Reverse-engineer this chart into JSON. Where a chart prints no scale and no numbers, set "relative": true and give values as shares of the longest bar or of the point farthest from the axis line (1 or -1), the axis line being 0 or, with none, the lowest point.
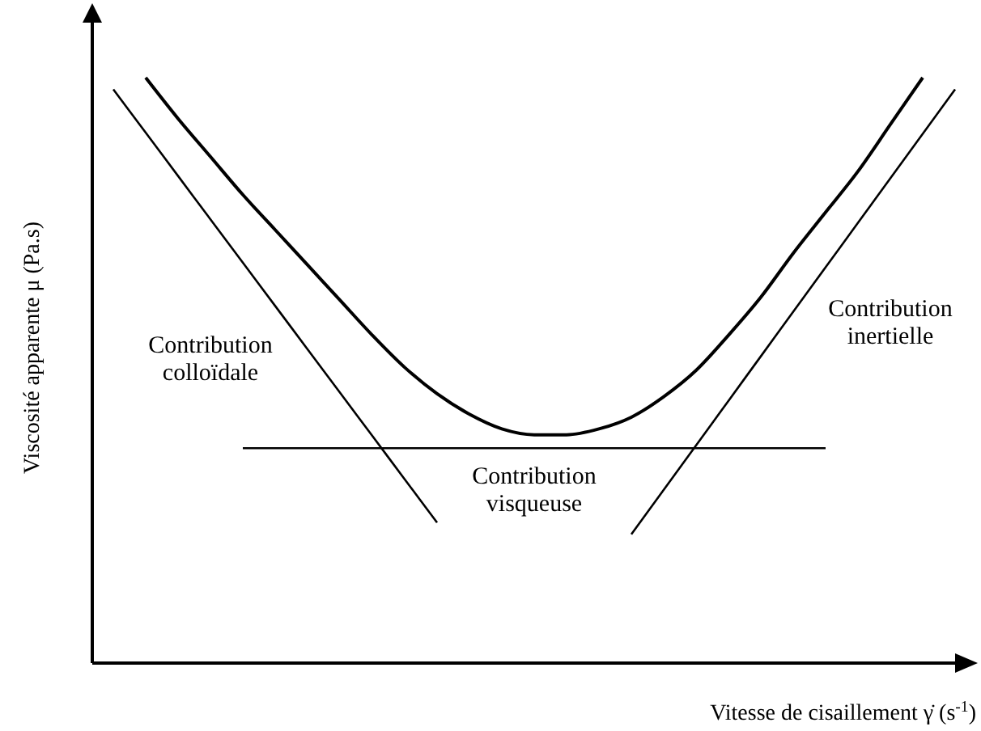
{
  "chart_data": {
    "type": "line",
    "relative": true,
    "marker": "none",
    "line_style": "solid",
    "xlabel": "Vitesse de cisaillement γ̇ (s$^{-1}$)",
    "ylabel": "Viscosité apparente μ (Pa.s)",
    "categories": [
      null,
      null,
      null,
      null,
      null,
      null,
      null,
      null,
      null,
      null,
      null,
      null,
      null,
      null,
      null,
      null,
      null,
      null,
      null,
      null,
      null,
      null,
      null,
      null,
      null,
      null,
      null
    ],
    "series": [
      {
        "color": "#000000",
        "values": [
          null,
          1.0,
          0.93,
          0.865,
          0.8,
          0.74,
          0.68,
          0.62,
          0.56,
          0.505,
          0.46,
          0.425,
          0.4,
          0.39,
          0.39,
          0.4,
          0.42,
          0.455,
          0.5,
          0.56,
          0.625,
          0.7,
          0.77,
          0.84,
          0.92,
          1.0,
          null
        ]
      },
      {
        "name": "Contribution colloïdale",
        "color": "#000000",
        "values": [
          0.98,
          0.906,
          0.832,
          0.758,
          0.684,
          0.61,
          0.536,
          0.462,
          0.388,
          0.314,
          0.24,
          null,
          null,
          null,
          null,
          null,
          null,
          null,
          null,
          null,
          null,
          null,
          null,
          null,
          null,
          null,
          null
        ]
      },
      {
        "name": "Contribution inertielle",
        "color": "#000000",
        "values": [
          null,
          null,
          null,
          null,
          null,
          null,
          null,
          null,
          null,
          null,
          null,
          null,
          null,
          null,
          null,
          null,
          0.22,
          0.296,
          0.372,
          0.448,
          0.524,
          0.6,
          0.676,
          0.752,
          0.828,
          0.904,
          0.98
        ]
      },
      {
        "name": "Contribution visqueuse",
        "color": "#000000",
        "values": [
          null,
          null,
          null,
          null,
          0.367,
          0.367,
          0.367,
          0.367,
          0.367,
          0.367,
          0.367,
          0.367,
          0.367,
          0.367,
          0.367,
          0.367,
          0.367,
          0.367,
          0.367,
          0.367,
          0.367,
          0.367,
          0.367,
          null,
          null,
          null,
          null
        ]
      }
    ]
  }
}
